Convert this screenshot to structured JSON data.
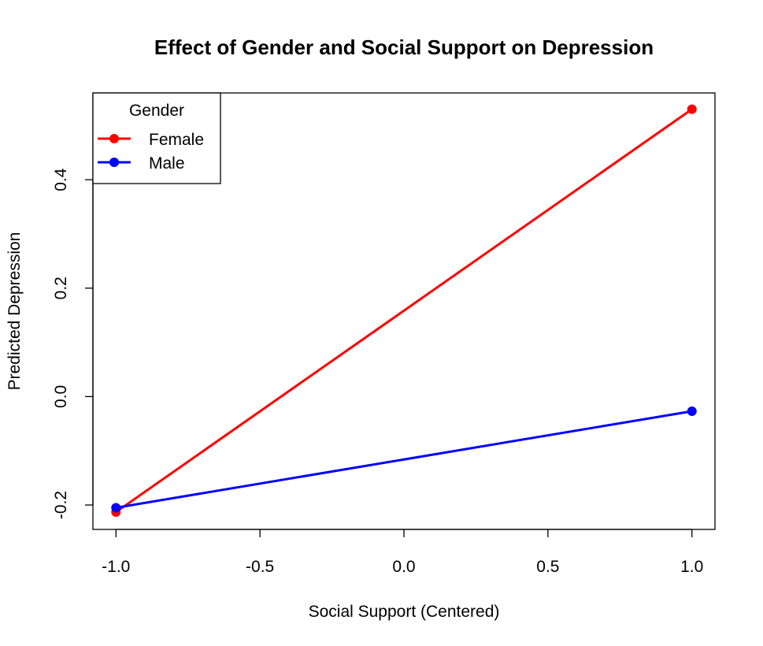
{
  "chart_data": {
    "type": "line",
    "title": "Effect of Gender and Social Support on Depression",
    "xlabel": "Social Support (Centered)",
    "ylabel": "Predicted Depression",
    "x": [
      -1.0,
      1.0
    ],
    "xlim": [
      -1.08,
      1.08
    ],
    "ylim": [
      -0.245,
      0.56
    ],
    "xticks": [
      -1.0,
      -0.5,
      0.0,
      0.5,
      1.0
    ],
    "xtick_labels": [
      "-1.0",
      "-0.5",
      "0.0",
      "0.5",
      "1.0"
    ],
    "yticks": [
      -0.2,
      0.0,
      0.2,
      0.4
    ],
    "ytick_labels": [
      "-0.2",
      "0.0",
      "0.2",
      "0.4"
    ],
    "grid": false,
    "legend": {
      "title": "Gender",
      "placement": "top-left"
    },
    "series": [
      {
        "name": "Female",
        "color": "#ff0000",
        "values": [
          -0.213,
          0.53
        ]
      },
      {
        "name": "Male",
        "color": "#0000ff",
        "values": [
          -0.205,
          -0.027
        ]
      }
    ]
  }
}
